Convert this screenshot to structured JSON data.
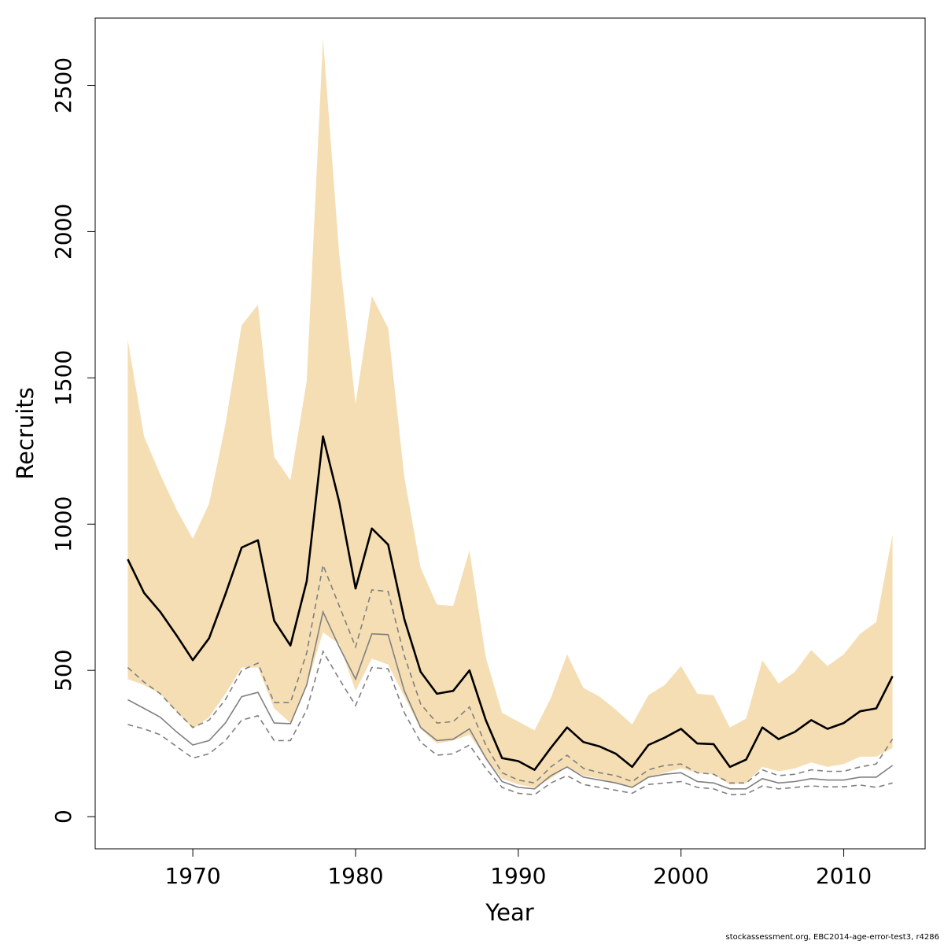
{
  "chart_data": {
    "type": "line",
    "title": "",
    "xlabel": "Year",
    "ylabel": "Recruits",
    "xlim": [
      1964,
      2015
    ],
    "ylim": [
      -110,
      2730
    ],
    "x_ticks": [
      1970,
      1980,
      1990,
      2000,
      2010
    ],
    "y_ticks": [
      0,
      500,
      1000,
      1500,
      2000,
      2500
    ],
    "grid": false,
    "colors": {
      "band": "#f5deb3",
      "main": "#000000",
      "secondary": "#808080",
      "secondary_ci": "#808080"
    },
    "x": [
      1966,
      1967,
      1968,
      1969,
      1970,
      1971,
      1972,
      1973,
      1974,
      1975,
      1976,
      1977,
      1978,
      1979,
      1980,
      1981,
      1982,
      1983,
      1984,
      1985,
      1986,
      1987,
      1988,
      1989,
      1990,
      1991,
      1992,
      1993,
      1994,
      1995,
      1996,
      1997,
      1998,
      1999,
      2000,
      2001,
      2002,
      2003,
      2004,
      2005,
      2006,
      2007,
      2008,
      2009,
      2010,
      2011,
      2012,
      2013
    ],
    "series": [
      {
        "values": [
          880,
          765,
          700,
          620,
          535,
          610,
          760,
          920,
          945,
          670,
          585,
          805,
          1300,
          1075,
          780,
          985,
          930,
          675,
          495,
          420,
          430,
          500,
          330,
          200,
          190,
          160,
          235,
          305,
          255,
          240,
          215,
          170,
          245,
          270,
          300,
          250,
          248,
          170,
          195,
          305,
          265,
          290,
          330,
          300,
          320,
          360,
          370,
          480
        ],
        "lower": [
          470,
          450,
          420,
          360,
          300,
          340,
          420,
          510,
          510,
          370,
          320,
          450,
          630,
          590,
          430,
          540,
          520,
          410,
          300,
          250,
          260,
          280,
          200,
          130,
          110,
          100,
          130,
          170,
          140,
          130,
          115,
          100,
          135,
          150,
          165,
          150,
          145,
          110,
          115,
          170,
          155,
          165,
          185,
          170,
          180,
          205,
          205,
          235
        ],
        "upper": [
          1630,
          1300,
          1170,
          1050,
          950,
          1070,
          1340,
          1680,
          1750,
          1230,
          1150,
          1490,
          2660,
          1920,
          1410,
          1780,
          1670,
          1160,
          850,
          725,
          720,
          910,
          545,
          355,
          325,
          295,
          405,
          555,
          440,
          410,
          365,
          315,
          415,
          450,
          515,
          420,
          415,
          305,
          335,
          535,
          455,
          495,
          570,
          515,
          555,
          625,
          665,
          965
        ]
      },
      {
        "values": [
          400,
          370,
          340,
          290,
          245,
          260,
          320,
          410,
          425,
          320,
          318,
          450,
          700,
          580,
          470,
          625,
          622,
          430,
          305,
          260,
          265,
          300,
          200,
          120,
          100,
          95,
          140,
          170,
          135,
          125,
          115,
          100,
          135,
          145,
          150,
          120,
          115,
          95,
          95,
          130,
          115,
          120,
          130,
          125,
          125,
          135,
          135,
          175
        ],
        "upper": [
          510,
          460,
          420,
          360,
          305,
          330,
          400,
          500,
          525,
          390,
          390,
          560,
          860,
          720,
          580,
          775,
          770,
          550,
          385,
          320,
          325,
          375,
          245,
          150,
          125,
          115,
          170,
          210,
          165,
          150,
          140,
          120,
          160,
          175,
          180,
          150,
          145,
          115,
          115,
          160,
          140,
          145,
          160,
          155,
          155,
          170,
          180,
          265
        ],
        "lower": [
          315,
          300,
          280,
          240,
          200,
          215,
          260,
          330,
          345,
          260,
          260,
          365,
          565,
          470,
          380,
          510,
          505,
          355,
          255,
          210,
          215,
          245,
          165,
          100,
          80,
          75,
          115,
          140,
          110,
          100,
          90,
          80,
          110,
          115,
          120,
          100,
          95,
          75,
          77,
          105,
          95,
          100,
          105,
          102,
          102,
          108,
          100,
          115
        ]
      }
    ]
  },
  "footer": "stockassessment.org, EBC2014-age-error-test3, r4286"
}
